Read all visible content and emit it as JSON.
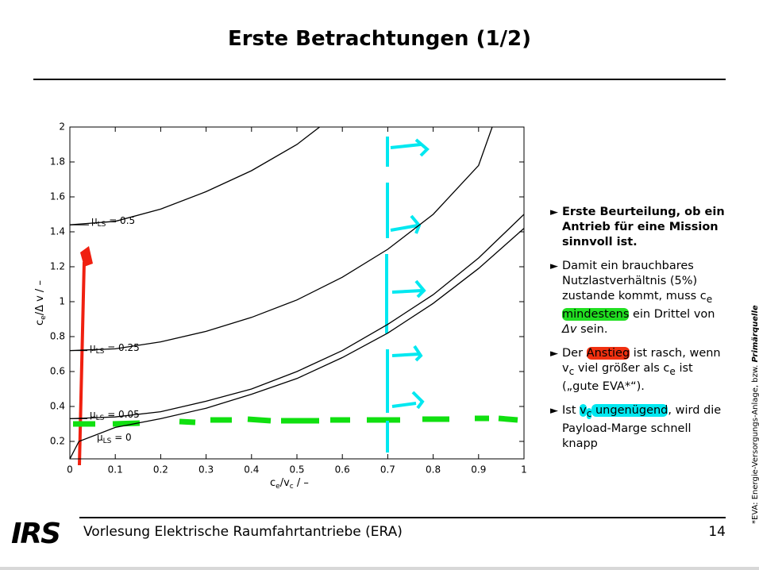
{
  "header": {
    "title": "Erste Betrachtungen (1/2)"
  },
  "chart_data": {
    "type": "line",
    "ylabel": [
      "c",
      "e",
      "/Δ v / –"
    ],
    "xlabel": [
      "c",
      "e",
      "/v",
      "c",
      " / –"
    ],
    "xlim": [
      0,
      1
    ],
    "ylim": [
      0.1,
      2
    ],
    "xticks": [
      0,
      0.1,
      0.2,
      0.3,
      0.4,
      0.5,
      0.6,
      0.7,
      0.8,
      0.9,
      1
    ],
    "yticks": [
      0.2,
      0.4,
      0.6,
      0.8,
      1,
      1.2,
      1.4,
      1.6,
      1.8,
      2
    ],
    "series": [
      {
        "label": [
          "µ",
          "LS",
          " = 0.5"
        ],
        "color": "#000000",
        "x": [
          0,
          0.1,
          0.2,
          0.3,
          0.4,
          0.5,
          0.55
        ],
        "values": [
          1.44,
          1.46,
          1.53,
          1.63,
          1.75,
          1.9,
          2.0
        ]
      },
      {
        "label": [
          "µ",
          "LS",
          " = 0.25"
        ],
        "color": "#000000",
        "x": [
          0,
          0.1,
          0.2,
          0.3,
          0.4,
          0.5,
          0.6,
          0.7,
          0.8,
          0.9,
          0.93
        ],
        "values": [
          0.72,
          0.73,
          0.77,
          0.83,
          0.91,
          1.01,
          1.14,
          1.3,
          1.5,
          1.78,
          2.0
        ]
      },
      {
        "label": [
          "µ",
          "LS",
          " = 0.05"
        ],
        "color": "#000000",
        "x": [
          0,
          0.1,
          0.2,
          0.3,
          0.4,
          0.5,
          0.6,
          0.7,
          0.8,
          0.9,
          1
        ],
        "values": [
          0.33,
          0.34,
          0.37,
          0.43,
          0.5,
          0.6,
          0.72,
          0.87,
          1.04,
          1.25,
          1.5
        ]
      },
      {
        "label": [
          "µ",
          "LS",
          " = 0"
        ],
        "color": "#000000",
        "x": [
          0,
          0.02,
          0.1,
          0.2,
          0.3,
          0.4,
          0.5,
          0.6,
          0.7,
          0.8,
          0.9,
          1
        ],
        "values": [
          0.1,
          0.2,
          0.28,
          0.33,
          0.39,
          0.47,
          0.56,
          0.68,
          0.82,
          0.99,
          1.19,
          1.42
        ]
      }
    ]
  },
  "bullets": [
    {
      "bold": true,
      "segments": [
        "Erste Beurteilung, ob ein Antrieb für eine Mission sinnvoll ist."
      ]
    },
    {
      "segments": [
        "Damit ein brauchba­res Nutzlastverhältnis (5%) zustande kommt, muss c",
        {
          "sub": "e"
        },
        " ",
        {
          "text": "mindestens",
          "highlight": "#22e022"
        },
        " ein Drittel von ",
        {
          "text": "Δv",
          "italic": true
        },
        " sein."
      ]
    },
    {
      "segments": [
        "Der ",
        {
          "text": "Anstieg",
          "highlight": "#f03010"
        },
        " ist rasch, wenn v",
        {
          "sub": "c"
        },
        " viel größer als c",
        {
          "sub": "e"
        },
        " ist („gute EVA*“)."
      ]
    },
    {
      "segments": [
        " Ist ",
        {
          "text": "v",
          "highlight": "#00e8f0"
        },
        {
          "sub": "c",
          "highlight": "#00e8f0"
        },
        {
          "text": " ungenügend",
          "highlight": "#00e8f0"
        },
        ", wird die Payload-Mar­ge schnell knapp"
      ]
    }
  ],
  "side_note": [
    "*EVA: Energie-Versorgungs-Anlage, bzw. ",
    "Primärquelle"
  ],
  "footer": {
    "logo": "IRS",
    "text": "Vorlesung Elektrische Raumfahrtantriebe (ERA)",
    "page": "14"
  }
}
